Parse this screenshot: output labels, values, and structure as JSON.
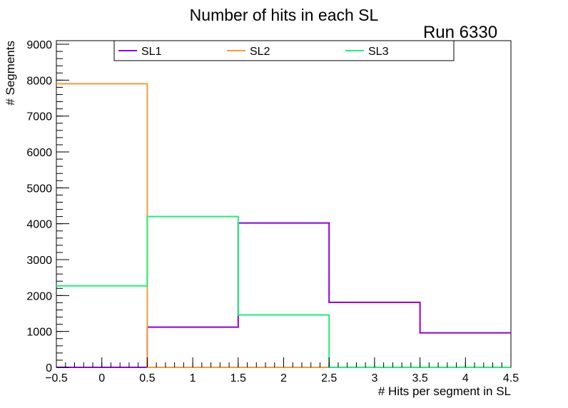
{
  "chart_data": {
    "type": "step-histogram",
    "title": "Number of hits in each SL",
    "annotation": "Run 6330",
    "xlabel": "# Hits per segment in SL",
    "ylabel": "# Segments",
    "xlim": [
      -0.5,
      4.5
    ],
    "ylim": [
      0,
      9100
    ],
    "x_ticks": [
      -0.5,
      0,
      0.5,
      1,
      1.5,
      2,
      2.5,
      3,
      3.5,
      4,
      4.5
    ],
    "x_tick_labels": [
      "−0.5",
      "0",
      "0.5",
      "1",
      "1.5",
      "2",
      "2.5",
      "3",
      "3.5",
      "4",
      "4.5"
    ],
    "y_ticks": [
      0,
      1000,
      2000,
      3000,
      4000,
      5000,
      6000,
      7000,
      8000,
      9000
    ],
    "y_tick_labels": [
      "0",
      "1000",
      "2000",
      "3000",
      "4000",
      "5000",
      "6000",
      "7000",
      "8000",
      "9000"
    ],
    "bin_edges": [
      -0.5,
      0.5,
      1.5,
      2.5,
      3.5,
      4.5
    ],
    "series": [
      {
        "name": "SL1",
        "color": "#8a00e0",
        "values": [
          0,
          1120,
          4020,
          1810,
          960
        ]
      },
      {
        "name": "SL2",
        "color": "#f59a3c",
        "values": [
          7900,
          0,
          0,
          0,
          0
        ]
      },
      {
        "name": "SL3",
        "color": "#1ef07a",
        "values": [
          2270,
          4200,
          1460,
          0,
          0
        ]
      }
    ],
    "legend_position": "top",
    "grid": false
  }
}
